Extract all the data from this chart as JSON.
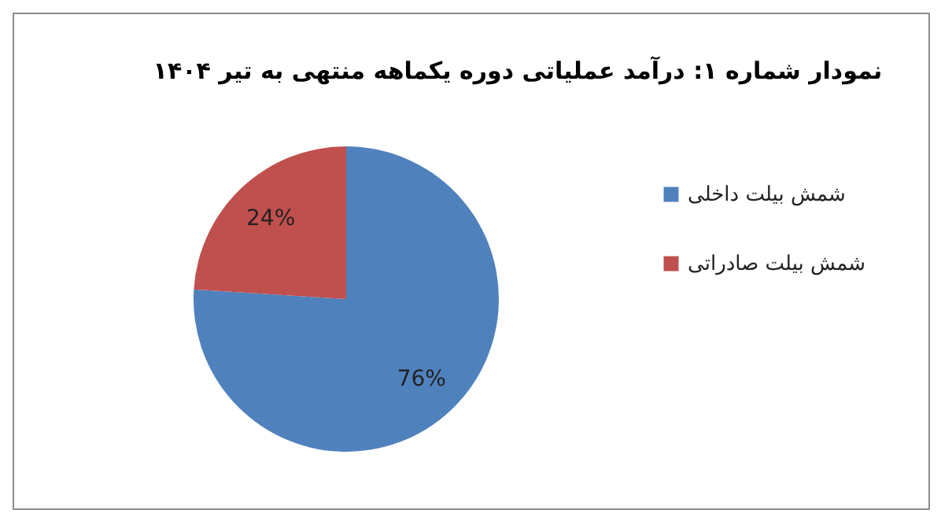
{
  "chart_data": {
    "type": "pie",
    "title": "نمودار شماره ۱: درآمد عملیاتی دوره یکماهه منتهی به تیر ۱۴۰۴",
    "categories": [
      "شمش بیلت داخلی",
      "شمش بیلت صادراتی"
    ],
    "values": [
      76,
      24
    ],
    "colors": [
      "#4f81bd",
      "#c0504d"
    ],
    "value_labels": [
      "76%",
      "24%"
    ],
    "legend": "right"
  }
}
